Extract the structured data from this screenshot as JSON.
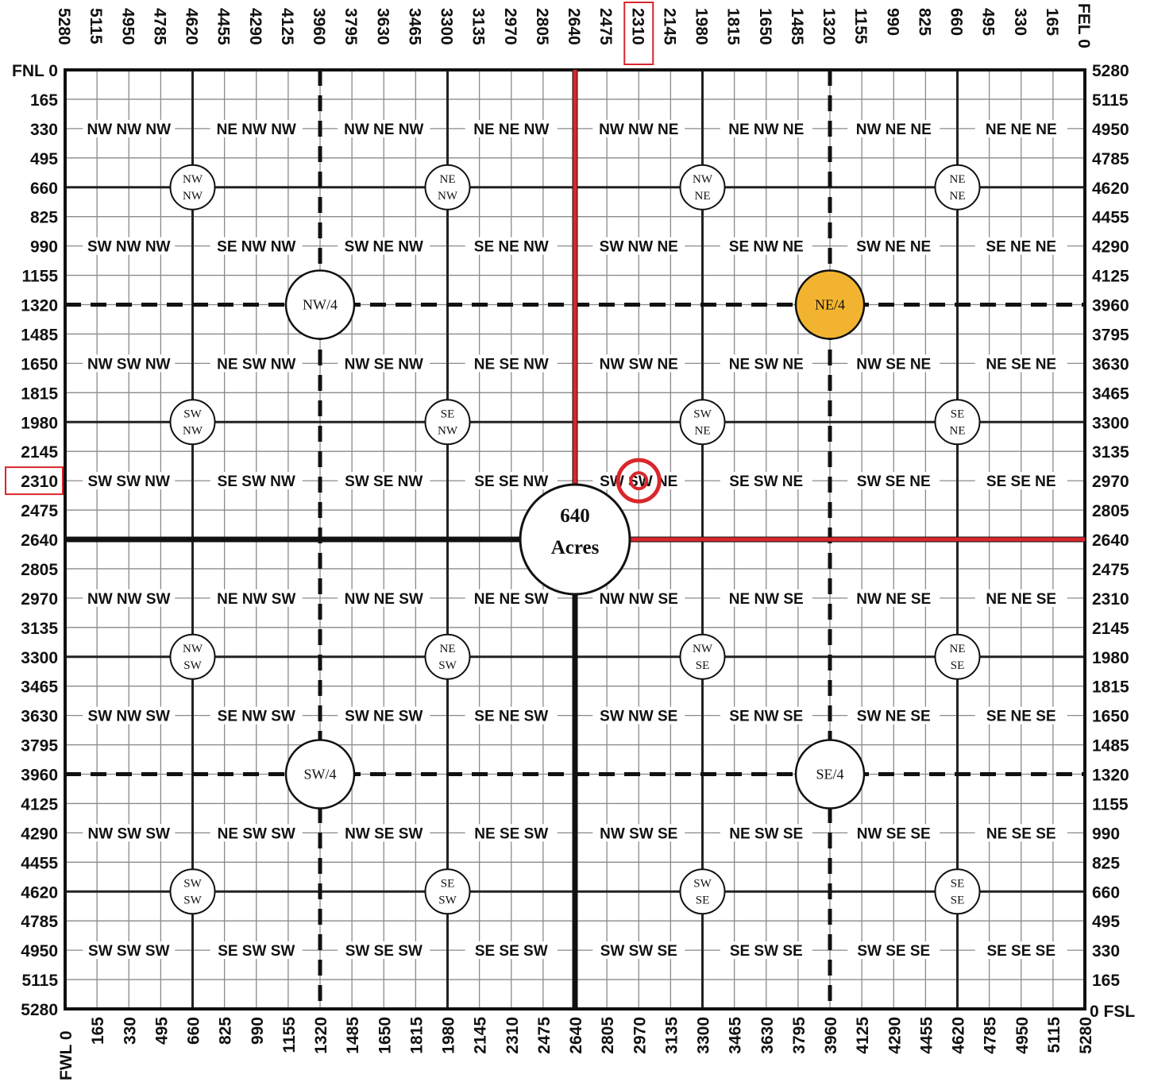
{
  "section": {
    "feet": 5280,
    "step": 165,
    "center_label": [
      "640",
      "Acres"
    ],
    "edge_labels": {
      "fnl": "FNL 0",
      "fel": "FEL 0",
      "fsl": "0 FSL",
      "fwl": "FWL 0"
    },
    "quarters": [
      {
        "text": "NW/4",
        "col": 1320,
        "row": 1320,
        "fill": "#ffffff"
      },
      {
        "text": "NE/4",
        "col": 3960,
        "row": 1320,
        "fill": "#f2b430"
      },
      {
        "text": "SW/4",
        "col": 1320,
        "row": 3960,
        "fill": "#ffffff"
      },
      {
        "text": "SE/4",
        "col": 3960,
        "row": 3960,
        "fill": "#ffffff"
      }
    ],
    "quarter_quarters": [
      {
        "a": "NW",
        "b": "NW",
        "col": 660,
        "row": 660
      },
      {
        "a": "NE",
        "b": "NW",
        "col": 1980,
        "row": 660
      },
      {
        "a": "NW",
        "b": "NE",
        "col": 3300,
        "row": 660
      },
      {
        "a": "NE",
        "b": "NE",
        "col": 4620,
        "row": 660
      },
      {
        "a": "SW",
        "b": "NW",
        "col": 660,
        "row": 1980
      },
      {
        "a": "SE",
        "b": "NW",
        "col": 1980,
        "row": 1980
      },
      {
        "a": "SW",
        "b": "NE",
        "col": 3300,
        "row": 1980
      },
      {
        "a": "SE",
        "b": "NE",
        "col": 4620,
        "row": 1980
      },
      {
        "a": "NW",
        "b": "SW",
        "col": 660,
        "row": 3300
      },
      {
        "a": "NE",
        "b": "SW",
        "col": 1980,
        "row": 3300
      },
      {
        "a": "NW",
        "b": "SE",
        "col": 3300,
        "row": 3300
      },
      {
        "a": "NE",
        "b": "SE",
        "col": 4620,
        "row": 3300
      },
      {
        "a": "SW",
        "b": "SW",
        "col": 660,
        "row": 4620
      },
      {
        "a": "SE",
        "b": "SW",
        "col": 1980,
        "row": 4620
      },
      {
        "a": "SW",
        "b": "SE",
        "col": 3300,
        "row": 4620
      },
      {
        "a": "SE",
        "b": "SE",
        "col": 4620,
        "row": 4620
      }
    ],
    "qqq_rows": [
      {
        "row": 330,
        "labels": [
          "NW NW NW",
          "NE NW NW",
          "NW NE NW",
          "NE NE NW",
          "NW NW NE",
          "NE NW NE",
          "NW NE NE",
          "NE NE NE"
        ]
      },
      {
        "row": 990,
        "labels": [
          "SW NW NW",
          "SE NW NW",
          "SW NE NW",
          "SE NE NW",
          "SW NW NE",
          "SE NW NE",
          "SW NE NE",
          "SE NE NE"
        ]
      },
      {
        "row": 1650,
        "labels": [
          "NW SW NW",
          "NE SW NW",
          "NW SE NW",
          "NE SE NW",
          "NW SW NE",
          "NE SW NE",
          "NW SE NE",
          "NE SE NE"
        ]
      },
      {
        "row": 2310,
        "labels": [
          "SW SW NW",
          "SE SW NW",
          "SW SE NW",
          "SE SE NW",
          "SW SW NE",
          "SE SW NE",
          "SW SE NE",
          "SE SE NE"
        ]
      },
      {
        "row": 2970,
        "labels": [
          "NW NW SW",
          "NE NW SW",
          "NW NE SW",
          "NE NE SW",
          "NW NW SE",
          "NE NW SE",
          "NW NE SE",
          "NE NE SE"
        ]
      },
      {
        "row": 3630,
        "labels": [
          "SW NW SW",
          "SE NW SW",
          "SW NE SW",
          "SE NE SW",
          "SW NW SE",
          "SE NW SE",
          "SW NE SE",
          "SE NE SE"
        ]
      },
      {
        "row": 4290,
        "labels": [
          "NW SW SW",
          "NE SW SW",
          "NW SE SW",
          "NE SE SW",
          "NW SW SE",
          "NE SW SE",
          "NW SE SE",
          "NE SE SE"
        ]
      },
      {
        "row": 4950,
        "labels": [
          "SW SW SW",
          "SE SW SW",
          "SW SE SW",
          "SE SE SW",
          "SW SW SE",
          "SE SW SE",
          "SW SE SE",
          "SE SE SE"
        ]
      }
    ],
    "highlight": {
      "col_label": "2310",
      "row_label": "2310",
      "point_col": 2970,
      "point_row": 2310,
      "color": "#d9262c"
    }
  }
}
